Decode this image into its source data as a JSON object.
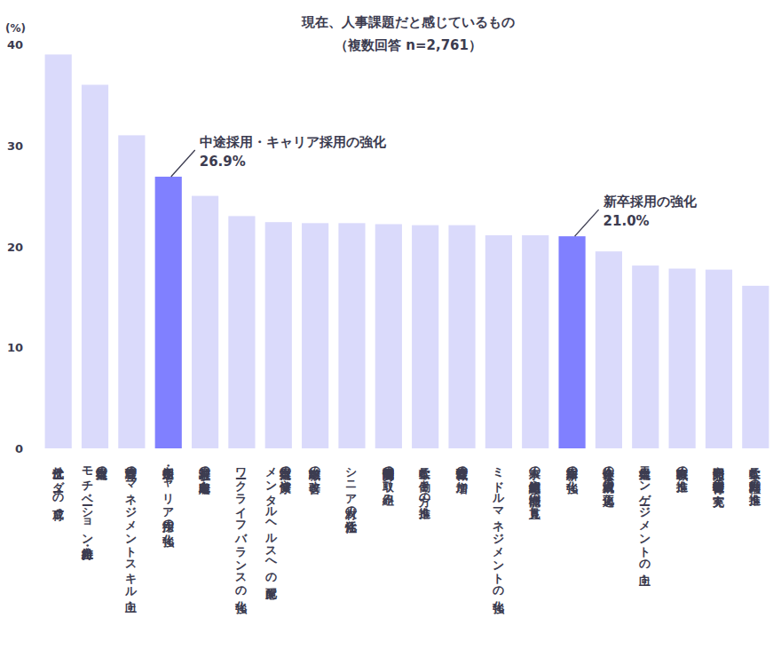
{
  "chart_data": {
    "type": "bar",
    "title": "現在、人事課題だと感じているもの",
    "subtitle": "（複数回答 n=2,761）",
    "y_label": "(%)",
    "categories": [
      "次世代リーダーの育成",
      "従業員の\nモチベーション維持・向上",
      "管理職のマネジメントスキル向上",
      "中途採用・キャリア採用の強化",
      "若手社員の定着率向上",
      "ワークライフバランスの強化",
      "従業員の健康や\nメンタルヘルスへの配慮",
      "離職率の改善",
      "シニア人材の活性化",
      "労働時間削減の取り組み",
      "柔軟な働き方の推進",
      "女性管理職の増加",
      "ミドルマネジメントの強化",
      "人事の組織体制や機能の見直し",
      "新卒採用の強化",
      "会社全体の人員構成の適正化",
      "従業員エンゲージメントの向上",
      "戦略人事の推進",
      "能力開発や教育研修機会の充実",
      "柔軟な社内異動の推進"
    ],
    "values": [
      39.0,
      36.0,
      31.0,
      26.9,
      25.0,
      23.0,
      22.4,
      22.3,
      22.3,
      22.2,
      22.1,
      22.1,
      21.1,
      21.1,
      21.0,
      19.5,
      18.1,
      17.8,
      17.7,
      16.1
    ],
    "colors": [
      "#dadafb",
      "#dadafb",
      "#dadafb",
      "#8080ff",
      "#dadafb",
      "#dadafb",
      "#dadafb",
      "#dadafb",
      "#dadafb",
      "#dadafb",
      "#dadafb",
      "#dadafb",
      "#dadafb",
      "#dadafb",
      "#8080ff",
      "#dadafb",
      "#dadafb",
      "#dadafb",
      "#dadafb",
      "#dadafb"
    ],
    "annotations": [
      {
        "text": "中途採用・キャリア採用の強化",
        "label": "26.9%"
      },
      {
        "text": "新卒採用の強化",
        "label": "21.0%"
      }
    ],
    "ylim": [
      0,
      40
    ],
    "yticks": [
      0,
      10,
      20,
      30,
      40
    ],
    "grid": false
  }
}
